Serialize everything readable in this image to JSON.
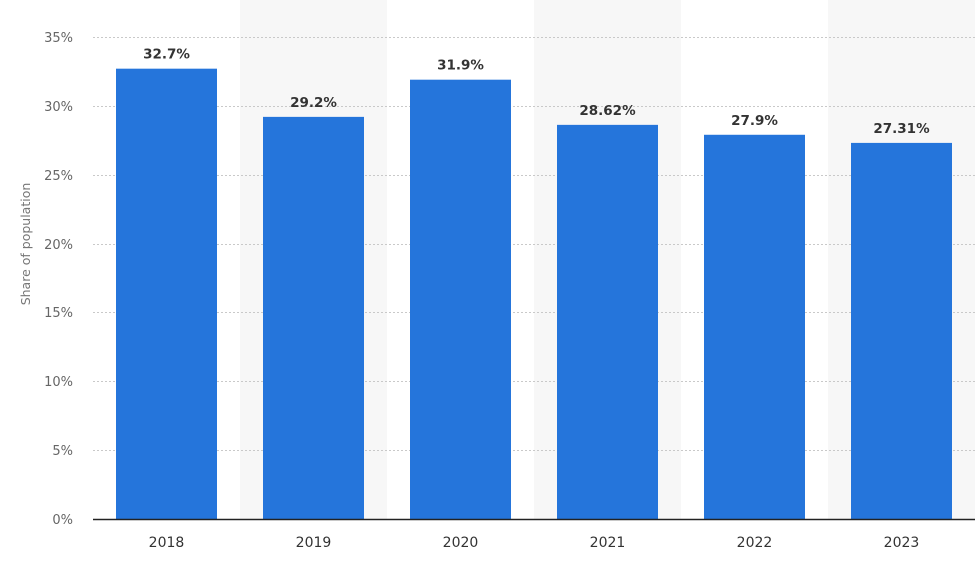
{
  "chart_data": {
    "type": "bar",
    "title": "",
    "xlabel": "",
    "ylabel": "Share of population",
    "categories": [
      "2018",
      "2019",
      "2020",
      "2021",
      "2022",
      "2023"
    ],
    "values": [
      32.7,
      29.2,
      31.9,
      28.62,
      27.9,
      27.31
    ],
    "data_labels": [
      "32.7%",
      "29.2%",
      "31.9%",
      "28.62%",
      "27.9%",
      "27.31%"
    ],
    "y_ticks": [
      0,
      5,
      10,
      15,
      20,
      25,
      30,
      35
    ],
    "y_tick_labels": [
      "0%",
      "5%",
      "10%",
      "15%",
      "20%",
      "25%",
      "30%",
      "35%"
    ],
    "ylim": [
      0,
      35
    ],
    "grid": true,
    "legend": "none",
    "bar_color": "#2575DB",
    "alt_band_color": "#F7F7F7"
  }
}
